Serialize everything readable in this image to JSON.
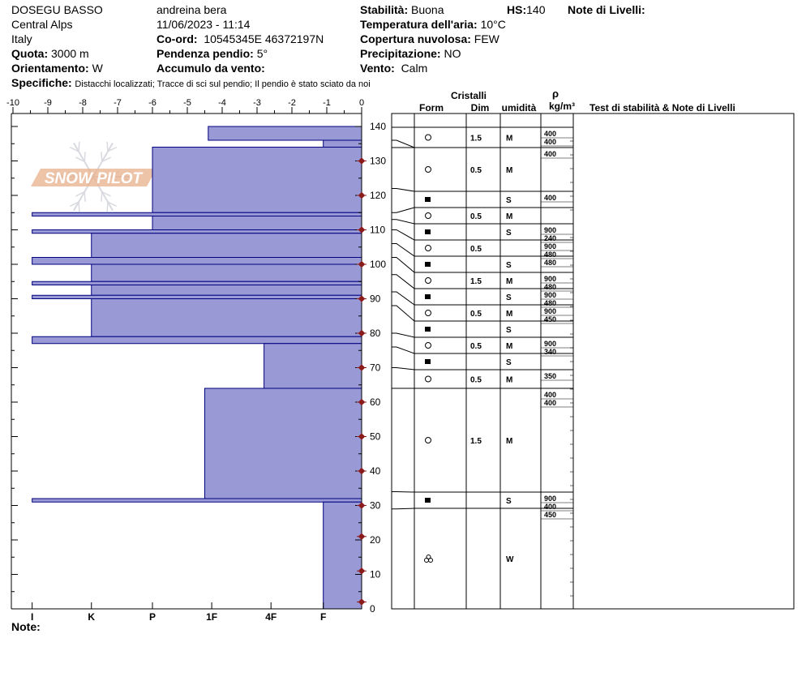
{
  "header": {
    "location": "DOSEGU BASSO",
    "range": "Central Alps",
    "country": "Italy",
    "elevation_label": "Quota:",
    "elevation": "3000 m",
    "aspect_label": "Orientamento:",
    "aspect": "W",
    "specifics_label": "Specifiche:",
    "specifics": "Distacchi localizzati;  Tracce di sci sul pendio;  Il pendio è stato sciato da noi",
    "observer": "andreina bera",
    "datetime": "11/06/2023 - 11:14",
    "coord_label": "Co-ord:",
    "coord": "10545345E 46372197N",
    "slope_label": "Pendenza pendio:",
    "slope": "5°",
    "wind_loading_label": "Accumulo da vento:",
    "stability_label": "Stabilità:",
    "stability": "Buona",
    "hs_label": "HS:",
    "hs": "140",
    "air_temp_label": "Temperatura dell'aria:",
    "air_temp": "10°C",
    "sky_label": "Copertura nuvolosa:",
    "sky": "FEW",
    "precip_label": "Precipitazione:",
    "precip": "NO",
    "wind_label": "Vento:",
    "wind": "Calm",
    "layer_notes_label": "Note di Livelli:",
    "notes_label": "Note:"
  },
  "logo": {
    "text": "SNOW PILOT"
  },
  "table_headers": {
    "crystals": "Cristalli",
    "form": "Form",
    "dim": "Dim",
    "moisture": "umidità",
    "rho": "ρ",
    "density_unit": "kg/m³",
    "tests": "Test di stabilità & Note di Livelli"
  },
  "colors": {
    "bar_fill": "#9999d6",
    "bar_stroke": "#00007f",
    "temp_marker": "#8b1a1a"
  },
  "chart_data": {
    "type": "bar",
    "title": "",
    "temperature_axis": {
      "ticks": [
        "-10",
        "-9",
        "-8",
        "-7",
        "-6",
        "-5",
        "-4",
        "-3",
        "-2",
        "-1",
        "0"
      ],
      "range": [
        -10,
        0
      ]
    },
    "hardness_axis": {
      "ticks": [
        "I",
        "K",
        "P",
        "1F",
        "4F",
        "F"
      ]
    },
    "height_axis": {
      "ticks": [
        "0",
        "10",
        "20",
        "30",
        "40",
        "50",
        "60",
        "70",
        "80",
        "90",
        "100",
        "110",
        "120",
        "130",
        "140"
      ],
      "range": [
        0,
        140
      ]
    },
    "hardness_layers": [
      {
        "bottom": 136,
        "top": 140,
        "hardness_position": 4.4
      },
      {
        "bottom": 134,
        "top": 136,
        "hardness_position": 1.1
      },
      {
        "bottom": 115,
        "top": 134,
        "hardness_position": 6.0
      },
      {
        "bottom": 114,
        "top": 115,
        "hardness_position": 9.45
      },
      {
        "bottom": 110,
        "top": 114,
        "hardness_position": 6.0
      },
      {
        "bottom": 109,
        "top": 110,
        "hardness_position": 9.45
      },
      {
        "bottom": 102,
        "top": 109,
        "hardness_position": 7.75
      },
      {
        "bottom": 100,
        "top": 102,
        "hardness_position": 9.45
      },
      {
        "bottom": 95,
        "top": 100,
        "hardness_position": 7.75
      },
      {
        "bottom": 94,
        "top": 95,
        "hardness_position": 9.45
      },
      {
        "bottom": 91,
        "top": 94,
        "hardness_position": 7.75
      },
      {
        "bottom": 90,
        "top": 91,
        "hardness_position": 9.45
      },
      {
        "bottom": 79,
        "top": 90,
        "hardness_position": 7.75
      },
      {
        "bottom": 77,
        "top": 79,
        "hardness_position": 9.45
      },
      {
        "bottom": 64,
        "top": 77,
        "hardness_position": 2.8
      },
      {
        "bottom": 32,
        "top": 64,
        "hardness_position": 4.5
      },
      {
        "bottom": 31,
        "top": 32,
        "hardness_position": 9.45
      },
      {
        "bottom": 0,
        "top": 31,
        "hardness_position": 1.1
      }
    ],
    "temperature_profile": [
      {
        "height": 2,
        "temp": 0
      },
      {
        "height": 11,
        "temp": 0
      },
      {
        "height": 21,
        "temp": 0
      },
      {
        "height": 30,
        "temp": 0
      },
      {
        "height": 40,
        "temp": 0
      },
      {
        "height": 50,
        "temp": 0
      },
      {
        "height": 60,
        "temp": 0
      },
      {
        "height": 70,
        "temp": 0
      },
      {
        "height": 80,
        "temp": 0
      },
      {
        "height": 90,
        "temp": 0
      },
      {
        "height": 100,
        "temp": 0
      },
      {
        "height": 110,
        "temp": 0
      },
      {
        "height": 120,
        "temp": 0
      },
      {
        "height": 130,
        "temp": 0
      }
    ],
    "layers_table": [
      {
        "bottom": 136,
        "top": 140,
        "form": "circle",
        "dim": "1.5",
        "moisture": "M",
        "density": [
          "400",
          "400"
        ]
      },
      {
        "bottom": 122,
        "top": 134,
        "form": "circle",
        "dim": "0.5",
        "moisture": "M",
        "density": [
          "400"
        ]
      },
      {
        "bottom": 115,
        "top": 122,
        "form": "square",
        "dim": "",
        "moisture": "S",
        "density": [
          "400"
        ]
      },
      {
        "bottom": 113,
        "top": 115,
        "form": "circle",
        "dim": "0.5",
        "moisture": "M",
        "density": []
      },
      {
        "bottom": 110,
        "top": 113,
        "form": "square",
        "dim": "",
        "moisture": "S",
        "density": [
          "900",
          "240"
        ]
      },
      {
        "bottom": 106,
        "top": 110,
        "form": "circle",
        "dim": "0.5",
        "moisture": "",
        "density": [
          "900",
          "480"
        ]
      },
      {
        "bottom": 102,
        "top": 106,
        "form": "square",
        "dim": "",
        "moisture": "S",
        "density": [
          "480"
        ]
      },
      {
        "bottom": 97,
        "top": 102,
        "form": "circle",
        "dim": "1.5",
        "moisture": "M",
        "density": [
          "900",
          "480"
        ]
      },
      {
        "bottom": 92,
        "top": 97,
        "form": "square",
        "dim": "",
        "moisture": "S",
        "density": [
          "900",
          "480"
        ]
      },
      {
        "bottom": 88,
        "top": 92,
        "form": "circle",
        "dim": "0.5",
        "moisture": "M",
        "density": [
          "900",
          "450"
        ]
      },
      {
        "bottom": 80,
        "top": 88,
        "form": "square",
        "dim": "",
        "moisture": "S",
        "density": []
      },
      {
        "bottom": 76,
        "top": 80,
        "form": "circle",
        "dim": "0.5",
        "moisture": "M",
        "density": [
          "900",
          "340"
        ]
      },
      {
        "bottom": 70,
        "top": 76,
        "form": "square",
        "dim": "",
        "moisture": "S",
        "density": []
      },
      {
        "bottom": 64,
        "top": 70,
        "form": "circle",
        "dim": "0.5",
        "moisture": "M",
        "density": [
          "350"
        ]
      },
      {
        "bottom": 34,
        "top": 64,
        "form": "circle",
        "dim": "1.5",
        "moisture": "M",
        "density": [
          "400",
          "400"
        ]
      },
      {
        "bottom": 29,
        "top": 34,
        "form": "square",
        "dim": "",
        "moisture": "S",
        "density": [
          "900",
          "400"
        ]
      },
      {
        "bottom": 0,
        "top": 29,
        "form": "cluster",
        "dim": "",
        "moisture": "W",
        "density": [
          "450"
        ]
      }
    ]
  }
}
